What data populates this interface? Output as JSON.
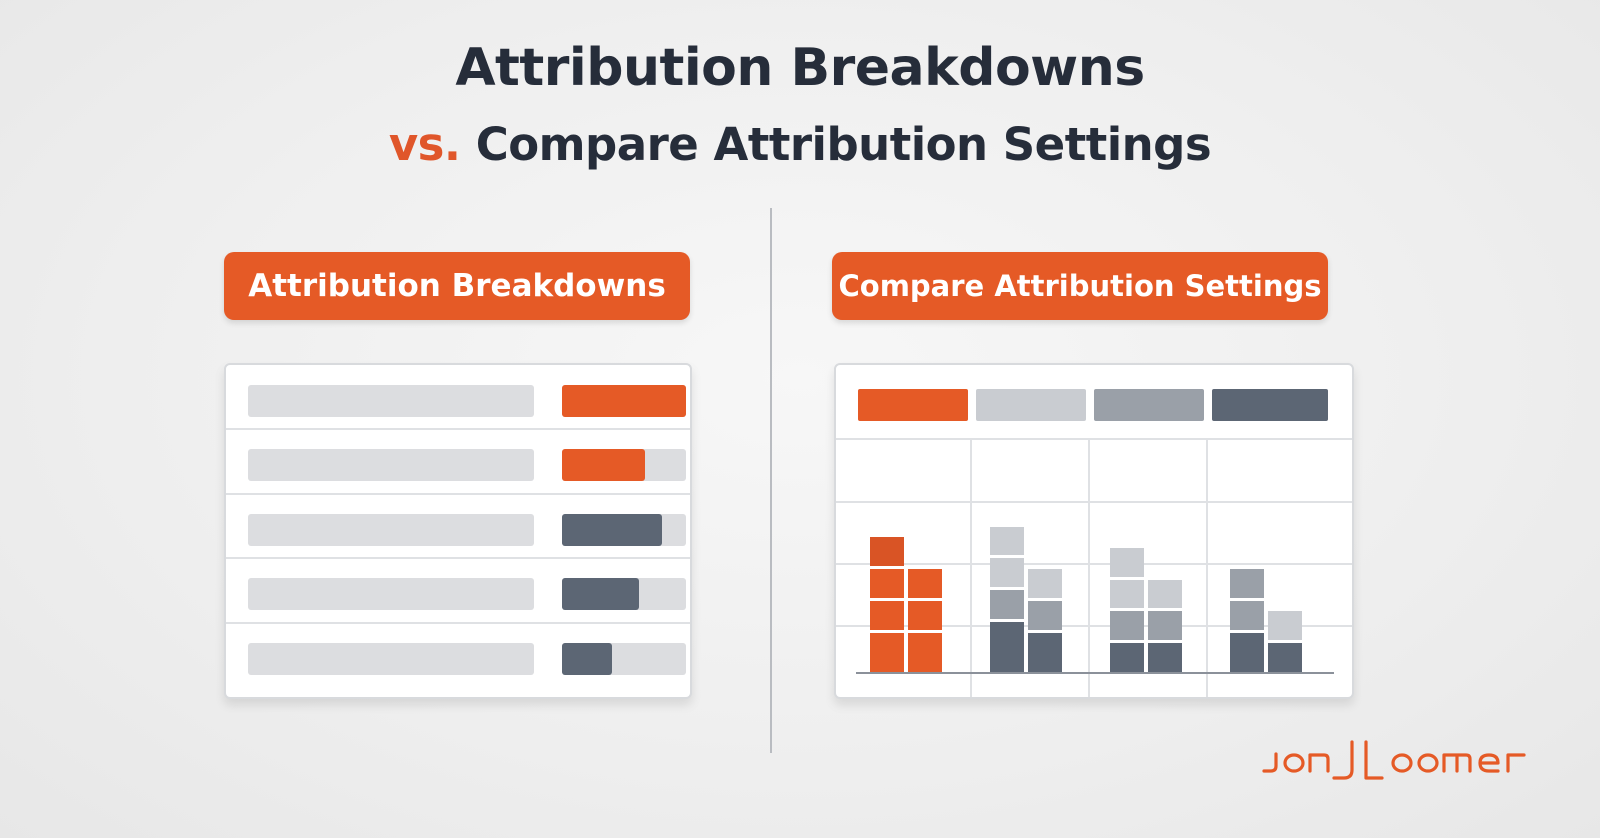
{
  "header": {
    "title": "Attribution Breakdowns",
    "subtitle_prefix": "vs.",
    "subtitle_rest": "Compare Attribution Settings"
  },
  "left_panel": {
    "label": "Attribution Breakdowns",
    "rows": [
      {
        "fill": 1.0,
        "color": "orange"
      },
      {
        "fill": 0.67,
        "color": "orange"
      },
      {
        "fill": 0.81,
        "color": "slate"
      },
      {
        "fill": 0.62,
        "color": "slate"
      },
      {
        "fill": 0.4,
        "color": "slate"
      }
    ]
  },
  "right_panel": {
    "label": "Compare Attribution Settings",
    "legend_colors": [
      "#e55a26",
      "#c9ccd1",
      "#9aa0a8",
      "#5c6674"
    ],
    "groups": [
      {
        "bars": [
          {
            "segments": [
              {
                "v": 4,
                "c": "#e55a26"
              },
              {
                "v": 3,
                "c": "#e55a26"
              },
              {
                "v": 3,
                "c": "#e55a26"
              },
              {
                "v": 3,
                "c": "#d95425"
              }
            ]
          },
          {
            "segments": [
              {
                "v": 4,
                "c": "#e55a26"
              },
              {
                "v": 3,
                "c": "#e55a26"
              },
              {
                "v": 3,
                "c": "#e55a26"
              }
            ]
          }
        ]
      },
      {
        "bars": [
          {
            "segments": [
              {
                "v": 5,
                "c": "#5c6674"
              },
              {
                "v": 3,
                "c": "#9aa0a8"
              },
              {
                "v": 3,
                "c": "#c9ccd1"
              },
              {
                "v": 3,
                "c": "#c9ccd1"
              }
            ]
          },
          {
            "segments": [
              {
                "v": 4,
                "c": "#5c6674"
              },
              {
                "v": 3,
                "c": "#9aa0a8"
              },
              {
                "v": 3,
                "c": "#c9ccd1"
              }
            ]
          }
        ]
      },
      {
        "bars": [
          {
            "segments": [
              {
                "v": 3,
                "c": "#5c6674"
              },
              {
                "v": 3,
                "c": "#9aa0a8"
              },
              {
                "v": 3,
                "c": "#c9ccd1"
              },
              {
                "v": 3,
                "c": "#c9ccd1"
              }
            ]
          },
          {
            "segments": [
              {
                "v": 3,
                "c": "#5c6674"
              },
              {
                "v": 3,
                "c": "#9aa0a8"
              },
              {
                "v": 3,
                "c": "#c9ccd1"
              }
            ]
          }
        ]
      },
      {
        "bars": [
          {
            "segments": [
              {
                "v": 4,
                "c": "#5c6674"
              },
              {
                "v": 3,
                "c": "#9aa0a8"
              },
              {
                "v": 3,
                "c": "#9aa0a8"
              }
            ]
          },
          {
            "segments": [
              {
                "v": 3,
                "c": "#5c6674"
              },
              {
                "v": 3,
                "c": "#c9ccd1"
              }
            ]
          }
        ]
      }
    ]
  },
  "logo": {
    "text": "JON LOOMER",
    "icon": "jon-loomer-logo",
    "color": "#e55a26"
  }
}
